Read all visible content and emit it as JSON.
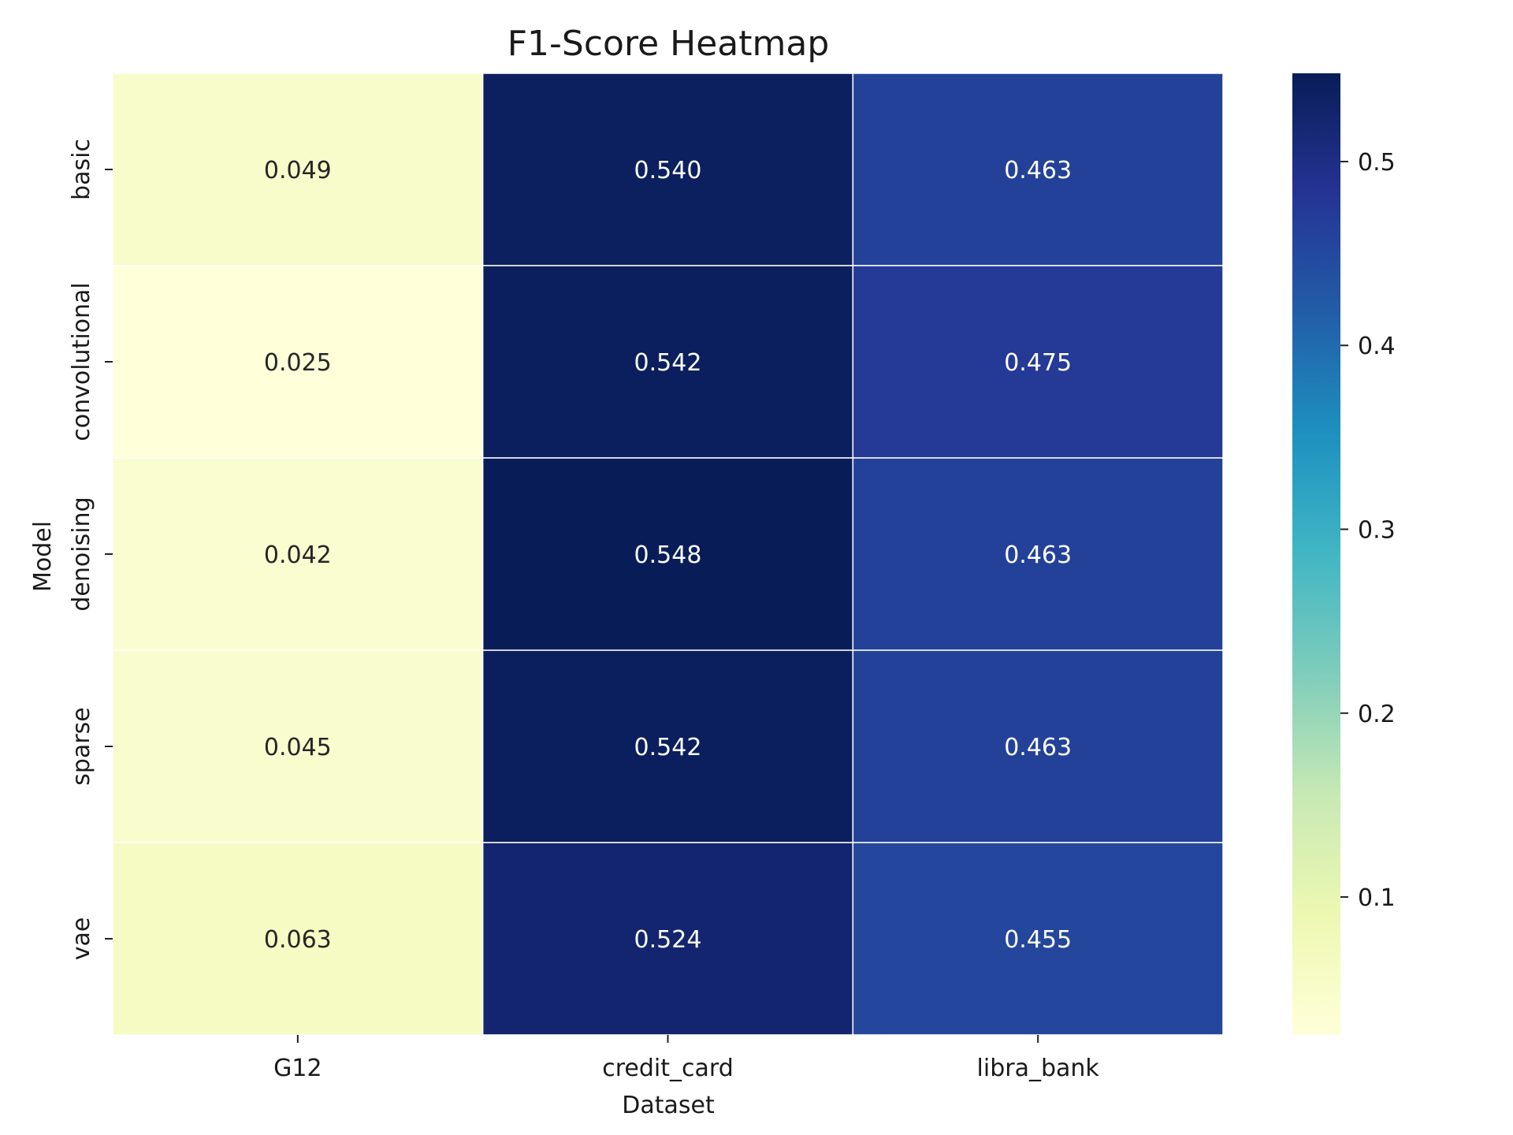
{
  "chart_data": {
    "type": "heatmap",
    "title": "F1-Score Heatmap",
    "xlabel": "Dataset",
    "ylabel": "Model",
    "x_categories": [
      "G12",
      "credit_card",
      "libra_bank"
    ],
    "y_categories": [
      "basic",
      "convolutional",
      "denoising",
      "sparse",
      "vae"
    ],
    "values": [
      [
        0.049,
        0.54,
        0.463
      ],
      [
        0.025,
        0.542,
        0.475
      ],
      [
        0.042,
        0.548,
        0.463
      ],
      [
        0.045,
        0.542,
        0.463
      ],
      [
        0.063,
        0.524,
        0.455
      ]
    ],
    "value_labels": [
      [
        "0.049",
        "0.540",
        "0.463"
      ],
      [
        "0.025",
        "0.542",
        "0.475"
      ],
      [
        "0.042",
        "0.548",
        "0.463"
      ],
      [
        "0.045",
        "0.542",
        "0.463"
      ],
      [
        "0.063",
        "0.524",
        "0.455"
      ]
    ],
    "colormap": "YlGnBu",
    "colorbar": {
      "range": [
        0.025,
        0.548
      ],
      "ticks": [
        0.1,
        0.2,
        0.3,
        0.4,
        0.5
      ],
      "tick_labels": [
        "0.1",
        "0.2",
        "0.3",
        "0.4",
        "0.5"
      ]
    },
    "grid": false
  }
}
